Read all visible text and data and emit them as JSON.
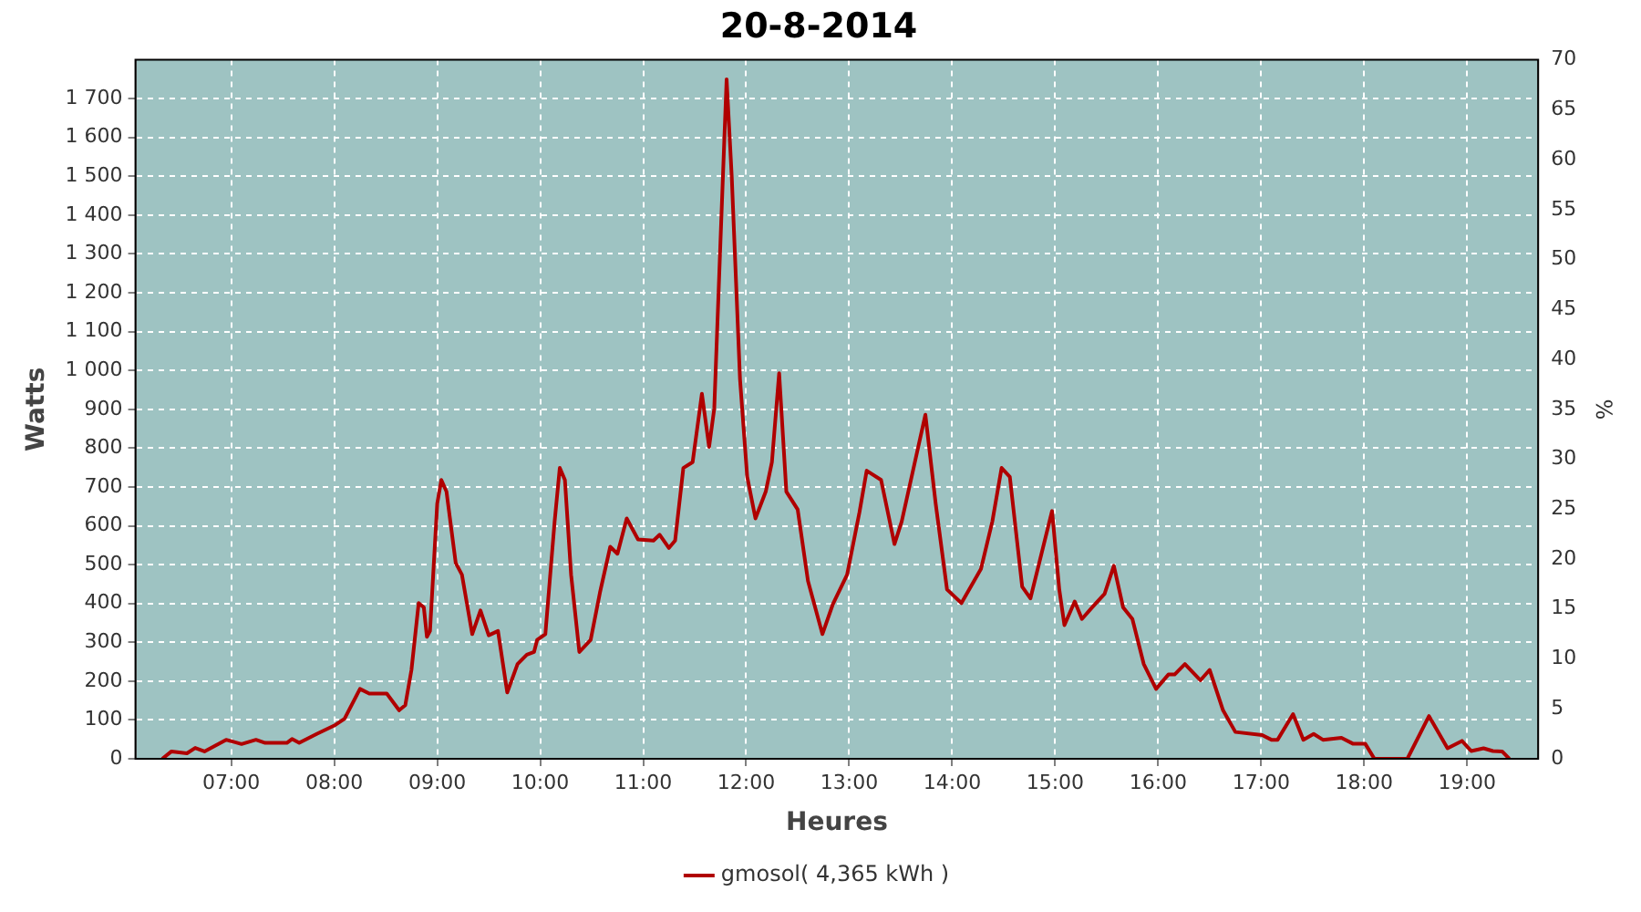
{
  "chart_data": {
    "type": "line",
    "title": "20-8-2014",
    "xlabel": "Heures",
    "ylabel": "Watts",
    "y2label": "%",
    "xlim": [
      6.07,
      19.69
    ],
    "xticks": [
      {
        "value": 7,
        "label": "07:00"
      },
      {
        "value": 8,
        "label": "08:00"
      },
      {
        "value": 9,
        "label": "09:00"
      },
      {
        "value": 10,
        "label": "10:00"
      },
      {
        "value": 11,
        "label": "11:00"
      },
      {
        "value": 12,
        "label": "12:00"
      },
      {
        "value": 13,
        "label": "13:00"
      },
      {
        "value": 14,
        "label": "14:00"
      },
      {
        "value": 15,
        "label": "15:00"
      },
      {
        "value": 16,
        "label": "16:00"
      },
      {
        "value": 17,
        "label": "17:00"
      },
      {
        "value": 18,
        "label": "18:00"
      },
      {
        "value": 19,
        "label": "19:00"
      }
    ],
    "ylim": [
      0,
      1800
    ],
    "yticks": [
      0,
      100,
      200,
      300,
      400,
      500,
      600,
      700,
      800,
      900,
      {
        "value": 1000,
        "label": "1 000"
      },
      {
        "value": 1100,
        "label": "1 100"
      },
      {
        "value": 1200,
        "label": "1 200"
      },
      {
        "value": 1300,
        "label": "1 300"
      },
      {
        "value": 1400,
        "label": "1 400"
      },
      {
        "value": 1500,
        "label": "1 500"
      },
      {
        "value": 1600,
        "label": "1 600"
      },
      {
        "value": 1700,
        "label": "1 700"
      }
    ],
    "y2lim": [
      0,
      70
    ],
    "y2ticks": [
      0,
      5,
      10,
      15,
      20,
      25,
      30,
      35,
      40,
      45,
      50,
      55,
      60,
      65,
      70
    ],
    "grid": true,
    "legend": "bottom",
    "marker": "none",
    "line_style": "solid",
    "x": [
      6.33,
      6.42,
      6.57,
      6.65,
      6.74,
      6.95,
      7.1,
      7.24,
      7.33,
      7.54,
      7.59,
      7.66,
      7.83,
      8.01,
      8.1,
      8.25,
      8.34,
      8.51,
      8.63,
      8.69,
      8.75,
      8.82,
      8.87,
      8.9,
      8.93,
      9.0,
      9.04,
      9.09,
      9.18,
      9.24,
      9.34,
      9.42,
      9.5,
      9.59,
      9.68,
      9.78,
      9.87,
      9.94,
      9.97,
      10.05,
      10.14,
      10.19,
      10.24,
      10.3,
      10.38,
      10.49,
      10.58,
      10.68,
      10.75,
      10.84,
      10.95,
      11.1,
      11.16,
      11.25,
      11.31,
      11.39,
      11.48,
      11.57,
      11.64,
      11.69,
      11.75,
      11.81,
      11.86,
      11.94,
      12.01,
      12.09,
      12.19,
      12.25,
      12.32,
      12.39,
      12.5,
      12.6,
      12.74,
      12.84,
      12.98,
      13.1,
      13.17,
      13.31,
      13.44,
      13.51,
      13.74,
      13.84,
      13.95,
      14.09,
      14.28,
      14.39,
      14.48,
      14.56,
      14.68,
      14.76,
      14.97,
      15.04,
      15.09,
      15.19,
      15.26,
      15.36,
      15.48,
      15.57,
      15.66,
      15.75,
      15.86,
      15.98,
      16.1,
      16.16,
      16.26,
      16.41,
      16.5,
      16.63,
      16.75,
      17.01,
      17.1,
      17.16,
      17.31,
      17.41,
      17.51,
      17.6,
      17.78,
      17.89,
      18.01,
      18.1,
      18.42,
      18.63,
      18.81,
      18.95,
      19.04,
      19.16,
      19.25,
      19.34,
      19.41
    ],
    "series": [
      {
        "name": "gmosol( 4,365 kWh )",
        "color": "#b00000",
        "values": [
          0,
          19,
          14,
          28,
          19,
          49,
          38,
          49,
          41,
          41,
          51,
          41,
          64,
          87,
          103,
          180,
          168,
          168,
          125,
          138,
          229,
          401,
          390,
          314,
          329,
          657,
          718,
          688,
          504,
          474,
          321,
          382,
          318,
          329,
          171,
          244,
          268,
          275,
          306,
          321,
          611,
          749,
          718,
          474,
          275,
          306,
          428,
          546,
          528,
          619,
          565,
          562,
          577,
          543,
          562,
          749,
          764,
          940,
          803,
          902,
          1330,
          1750,
          1498,
          978,
          726,
          619,
          688,
          764,
          993,
          688,
          642,
          458,
          321,
          397,
          474,
          635,
          742,
          718,
          553,
          611,
          886,
          657,
          436,
          401,
          489,
          611,
          749,
          726,
          443,
          413,
          638,
          436,
          344,
          405,
          360,
          390,
          425,
          497,
          390,
          360,
          244,
          180,
          217,
          217,
          244,
          202,
          229,
          125,
          69,
          61,
          49,
          49,
          115,
          49,
          64,
          49,
          54,
          39,
          39,
          0,
          0,
          110,
          27,
          46,
          20,
          27,
          20,
          19,
          0
        ]
      }
    ]
  }
}
